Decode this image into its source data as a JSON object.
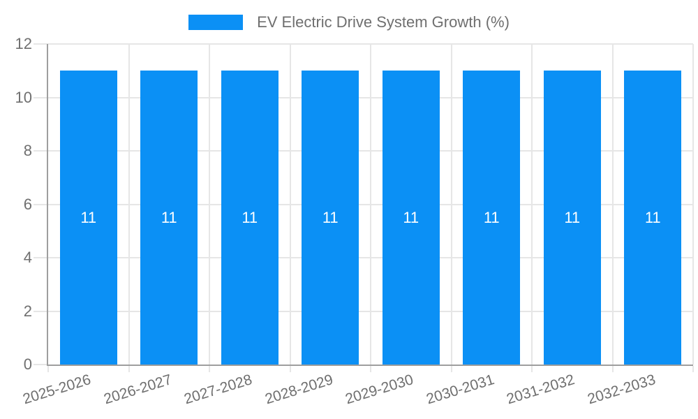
{
  "legend": {
    "label": "EV Electric Drive System Growth (%)"
  },
  "chart_data": {
    "type": "bar",
    "title": "EV Electric Drive System Growth (%)",
    "categories": [
      "2025-2026",
      "2026-2027",
      "2027-2028",
      "2028-2029",
      "2029-2030",
      "2030-2031",
      "2031-2032",
      "2032-2033"
    ],
    "series": [
      {
        "name": "EV Electric Drive System Growth (%)",
        "values": [
          11,
          11,
          11,
          11,
          11,
          11,
          11,
          11
        ]
      }
    ],
    "bar_value_labels": [
      "11",
      "11",
      "11",
      "11",
      "11",
      "11",
      "11",
      "11"
    ],
    "xlabel": "",
    "ylabel": "",
    "ylim": [
      0,
      12
    ],
    "yticks": [
      0,
      2,
      4,
      6,
      8,
      10,
      12
    ],
    "grid": true,
    "legend_position": "top",
    "colors": {
      "bar": "#0b90f5",
      "bar_label": "#ffffff",
      "axis_text": "#6f6f6f",
      "axis_line": "#9e9e9e",
      "gridline": "#e6e6e6",
      "background": "#ffffff"
    }
  }
}
